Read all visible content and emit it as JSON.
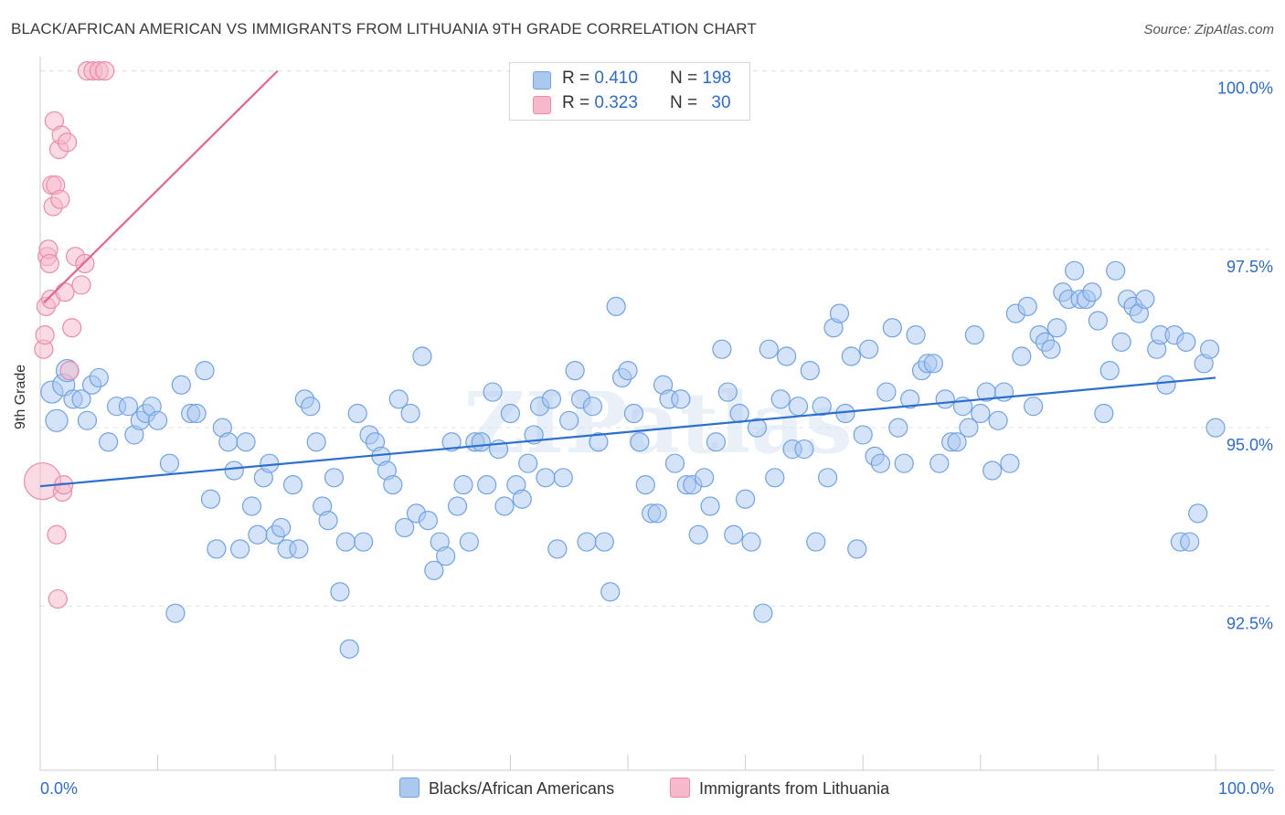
{
  "title": "BLACK/AFRICAN AMERICAN VS IMMIGRANTS FROM LITHUANIA 9TH GRADE CORRELATION CHART",
  "source": "Source: ZipAtlas.com",
  "watermark": "ZIPatlas",
  "legend": {
    "rows": [
      {
        "r_label": "R =",
        "r_value": "0.410",
        "n_label": "N =",
        "n_value": "198",
        "color": "#aac8f0"
      },
      {
        "r_label": "R =",
        "r_value": "0.323",
        "n_label": "N =",
        "n_value": "30",
        "color": "#f6b8ca"
      }
    ]
  },
  "bottom_legend": {
    "series1": "Blacks/African Americans",
    "series2": "Immigrants from Lithuania"
  },
  "axes": {
    "x_min_label": "0.0%",
    "x_max_label": "100.0%",
    "y_label": "9th Grade"
  },
  "chart_data": {
    "type": "scatter",
    "title": "BLACK/AFRICAN AMERICAN VS IMMIGRANTS FROM LITHUANIA 9TH GRADE CORRELATION CHART",
    "xlabel": "",
    "ylabel": "9th Grade",
    "xlim": [
      0,
      100
    ],
    "ylim": [
      90.2,
      100.2
    ],
    "y_ticks": [
      {
        "value": 100.0,
        "label": "100.0%"
      },
      {
        "value": 97.5,
        "label": "97.5%"
      },
      {
        "value": 95.0,
        "label": "95.0%"
      },
      {
        "value": 92.5,
        "label": "92.5%"
      }
    ],
    "grid": true,
    "legend_position": "top-center",
    "series": [
      {
        "name": "Blacks/African Americans",
        "color": "#6fa3e6",
        "fill": "#aac8f0",
        "trend": {
          "x": [
            0,
            100
          ],
          "y": [
            94.18,
            95.7
          ],
          "color": "#2b6fd0"
        },
        "points": [
          [
            1.0,
            95.5
          ],
          [
            1.4,
            95.1
          ],
          [
            2.0,
            95.6
          ],
          [
            2.3,
            95.8
          ],
          [
            2.8,
            95.4
          ],
          [
            3.5,
            95.4
          ],
          [
            4.0,
            95.1
          ],
          [
            4.4,
            95.6
          ],
          [
            5.0,
            95.7
          ],
          [
            5.8,
            94.8
          ],
          [
            6.5,
            95.3
          ],
          [
            7.5,
            95.3
          ],
          [
            8.0,
            94.9
          ],
          [
            8.5,
            95.1
          ],
          [
            9.0,
            95.2
          ],
          [
            9.5,
            95.3
          ],
          [
            10.0,
            95.1
          ],
          [
            11.0,
            94.5
          ],
          [
            11.5,
            92.4
          ],
          [
            12.0,
            95.6
          ],
          [
            12.8,
            95.2
          ],
          [
            13.3,
            95.2
          ],
          [
            14.0,
            95.8
          ],
          [
            14.5,
            94.0
          ],
          [
            15.0,
            93.3
          ],
          [
            15.5,
            95.0
          ],
          [
            16.0,
            94.8
          ],
          [
            16.5,
            94.4
          ],
          [
            17.0,
            93.3
          ],
          [
            17.5,
            94.8
          ],
          [
            18.0,
            93.9
          ],
          [
            18.5,
            93.5
          ],
          [
            19.0,
            94.3
          ],
          [
            19.5,
            94.5
          ],
          [
            20.0,
            93.5
          ],
          [
            20.5,
            93.6
          ],
          [
            21.0,
            93.3
          ],
          [
            21.5,
            94.2
          ],
          [
            22.0,
            93.3
          ],
          [
            22.5,
            95.4
          ],
          [
            23.0,
            95.3
          ],
          [
            23.5,
            94.8
          ],
          [
            24.0,
            93.9
          ],
          [
            24.5,
            93.7
          ],
          [
            25.0,
            94.3
          ],
          [
            25.5,
            92.7
          ],
          [
            26.0,
            93.4
          ],
          [
            26.3,
            91.9
          ],
          [
            27.0,
            95.2
          ],
          [
            27.5,
            93.4
          ],
          [
            28.0,
            94.9
          ],
          [
            28.5,
            94.8
          ],
          [
            29.0,
            94.6
          ],
          [
            29.5,
            94.4
          ],
          [
            30.0,
            94.2
          ],
          [
            30.5,
            95.4
          ],
          [
            31.0,
            93.6
          ],
          [
            31.5,
            95.2
          ],
          [
            32.0,
            93.8
          ],
          [
            32.5,
            96.0
          ],
          [
            33.0,
            93.7
          ],
          [
            33.5,
            93.0
          ],
          [
            34.0,
            93.4
          ],
          [
            34.5,
            93.2
          ],
          [
            35.0,
            94.8
          ],
          [
            35.5,
            93.9
          ],
          [
            36.0,
            94.2
          ],
          [
            36.5,
            93.4
          ],
          [
            37.0,
            94.8
          ],
          [
            37.5,
            94.8
          ],
          [
            38.0,
            94.2
          ],
          [
            38.5,
            95.5
          ],
          [
            39.0,
            94.7
          ],
          [
            39.5,
            93.9
          ],
          [
            40.0,
            95.2
          ],
          [
            40.5,
            94.2
          ],
          [
            41.0,
            94.0
          ],
          [
            41.5,
            94.5
          ],
          [
            42.0,
            94.9
          ],
          [
            42.5,
            95.3
          ],
          [
            43.0,
            94.3
          ],
          [
            43.5,
            95.4
          ],
          [
            44.0,
            93.3
          ],
          [
            44.5,
            94.3
          ],
          [
            45.0,
            95.1
          ],
          [
            45.5,
            95.8
          ],
          [
            46.0,
            95.4
          ],
          [
            46.5,
            93.4
          ],
          [
            47.0,
            95.3
          ],
          [
            47.5,
            94.8
          ],
          [
            48.0,
            93.4
          ],
          [
            48.5,
            92.7
          ],
          [
            49.0,
            96.7
          ],
          [
            49.5,
            95.7
          ],
          [
            50.0,
            95.8
          ],
          [
            50.5,
            95.2
          ],
          [
            51.0,
            94.8
          ],
          [
            51.5,
            94.2
          ],
          [
            52.0,
            93.8
          ],
          [
            52.5,
            93.8
          ],
          [
            53.0,
            95.6
          ],
          [
            53.5,
            95.4
          ],
          [
            54.0,
            94.5
          ],
          [
            54.5,
            95.4
          ],
          [
            55.0,
            94.2
          ],
          [
            55.5,
            94.2
          ],
          [
            56.0,
            93.5
          ],
          [
            56.5,
            94.3
          ],
          [
            57.0,
            93.9
          ],
          [
            57.5,
            94.8
          ],
          [
            58.0,
            96.1
          ],
          [
            58.5,
            95.5
          ],
          [
            59.0,
            93.5
          ],
          [
            59.5,
            95.2
          ],
          [
            60.0,
            94.0
          ],
          [
            60.5,
            93.4
          ],
          [
            61.0,
            95.0
          ],
          [
            61.5,
            92.4
          ],
          [
            62.0,
            96.1
          ],
          [
            62.5,
            94.3
          ],
          [
            63.0,
            95.4
          ],
          [
            63.5,
            96.0
          ],
          [
            64.0,
            94.7
          ],
          [
            64.5,
            95.3
          ],
          [
            65.0,
            94.7
          ],
          [
            65.5,
            95.8
          ],
          [
            66.0,
            93.4
          ],
          [
            66.5,
            95.3
          ],
          [
            67.0,
            94.3
          ],
          [
            67.5,
            96.4
          ],
          [
            68.0,
            96.6
          ],
          [
            68.5,
            95.2
          ],
          [
            69.0,
            96.0
          ],
          [
            69.5,
            93.3
          ],
          [
            70.0,
            94.9
          ],
          [
            70.5,
            96.1
          ],
          [
            71.0,
            94.6
          ],
          [
            71.5,
            94.5
          ],
          [
            72.0,
            95.5
          ],
          [
            72.5,
            96.4
          ],
          [
            73.0,
            95.0
          ],
          [
            73.5,
            94.5
          ],
          [
            74.0,
            95.4
          ],
          [
            74.5,
            96.3
          ],
          [
            75.0,
            95.8
          ],
          [
            75.5,
            95.9
          ],
          [
            76.0,
            95.9
          ],
          [
            76.5,
            94.5
          ],
          [
            77.0,
            95.4
          ],
          [
            77.5,
            94.8
          ],
          [
            78.0,
            94.8
          ],
          [
            78.5,
            95.3
          ],
          [
            79.0,
            95.0
          ],
          [
            79.5,
            96.3
          ],
          [
            80.0,
            95.2
          ],
          [
            80.5,
            95.5
          ],
          [
            81.0,
            94.4
          ],
          [
            81.5,
            95.1
          ],
          [
            82.0,
            95.5
          ],
          [
            82.5,
            94.5
          ],
          [
            83.0,
            96.6
          ],
          [
            83.5,
            96.0
          ],
          [
            84.0,
            96.7
          ],
          [
            84.5,
            95.3
          ],
          [
            85.0,
            96.3
          ],
          [
            85.5,
            96.2
          ],
          [
            86.0,
            96.1
          ],
          [
            86.5,
            96.4
          ],
          [
            87.0,
            96.9
          ],
          [
            87.5,
            96.8
          ],
          [
            88.0,
            97.2
          ],
          [
            88.5,
            96.8
          ],
          [
            89.0,
            96.8
          ],
          [
            89.5,
            96.9
          ],
          [
            90.0,
            96.5
          ],
          [
            90.5,
            95.2
          ],
          [
            91.0,
            95.8
          ],
          [
            91.5,
            97.2
          ],
          [
            92.0,
            96.2
          ],
          [
            92.5,
            96.8
          ],
          [
            93.0,
            96.7
          ],
          [
            93.5,
            96.6
          ],
          [
            94.0,
            96.8
          ],
          [
            95.0,
            96.1
          ],
          [
            95.3,
            96.3
          ],
          [
            95.8,
            95.6
          ],
          [
            96.5,
            96.3
          ],
          [
            97.0,
            93.4
          ],
          [
            97.5,
            96.2
          ],
          [
            97.8,
            93.4
          ],
          [
            98.5,
            93.8
          ],
          [
            99.0,
            95.9
          ],
          [
            99.5,
            96.1
          ],
          [
            100.0,
            95.0
          ]
        ]
      },
      {
        "name": "Immigrants from Lithuania",
        "color": "#ee8aa8",
        "fill": "#f6b8ca",
        "trend": {
          "x": [
            0.3,
            20.2
          ],
          "y": [
            96.75,
            100.0
          ],
          "color": "#e8648d"
        },
        "points": [
          [
            0.2,
            94.25
          ],
          [
            0.3,
            96.1
          ],
          [
            0.4,
            96.3
          ],
          [
            0.5,
            96.7
          ],
          [
            0.6,
            97.4
          ],
          [
            0.7,
            97.5
          ],
          [
            0.8,
            97.3
          ],
          [
            0.9,
            96.8
          ],
          [
            1.0,
            98.4
          ],
          [
            1.1,
            98.1
          ],
          [
            1.2,
            99.3
          ],
          [
            1.3,
            98.4
          ],
          [
            1.4,
            93.5
          ],
          [
            1.5,
            92.6
          ],
          [
            1.6,
            98.9
          ],
          [
            1.7,
            98.2
          ],
          [
            1.8,
            99.1
          ],
          [
            1.9,
            94.1
          ],
          [
            2.0,
            94.2
          ],
          [
            2.1,
            96.9
          ],
          [
            2.3,
            99.0
          ],
          [
            2.5,
            95.8
          ],
          [
            2.7,
            96.4
          ],
          [
            3.0,
            97.4
          ],
          [
            3.5,
            97.0
          ],
          [
            3.8,
            97.3
          ],
          [
            4.0,
            100.0
          ],
          [
            4.5,
            100.0
          ],
          [
            5.0,
            100.0
          ],
          [
            5.5,
            100.0
          ]
        ]
      }
    ]
  }
}
